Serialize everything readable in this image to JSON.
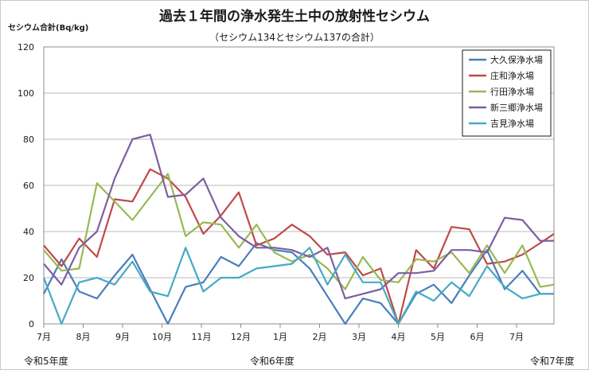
{
  "chart_data": {
    "type": "line",
    "title": "過去１年間の浄水発生土中の放射性セシウム",
    "subtitle": "（セシウム134とセシウム137の合計）",
    "ylabel": "セシウム合計(Bq/kg)",
    "ylim": [
      0,
      120
    ],
    "yticks": [
      0,
      20,
      40,
      60,
      80,
      100,
      120
    ],
    "grid": true,
    "legend": "top-right",
    "x_period_labels": [
      "令和5年度",
      "令和6年度",
      "令和7年度"
    ],
    "x_ticks": [
      {
        "label": "7月",
        "x": 0
      },
      {
        "label": "8月",
        "x": 2
      },
      {
        "label": "9月",
        "x": 4
      },
      {
        "label": "10月",
        "x": 6
      },
      {
        "label": "11月",
        "x": 8
      },
      {
        "label": "12月",
        "x": 10
      },
      {
        "label": "1月",
        "x": 12
      },
      {
        "label": "2月",
        "x": 14
      },
      {
        "label": "3月",
        "x": 16
      },
      {
        "label": "4月",
        "x": 18
      },
      {
        "label": "5月",
        "x": 20
      },
      {
        "label": "6月",
        "x": 22
      },
      {
        "label": "7月",
        "x": 24
      }
    ],
    "x_range": [
      0,
      25.9
    ],
    "series": [
      {
        "name": "大久保浄水場",
        "color": "#4a7ebb",
        "x": [
          0,
          0.9,
          1.8,
          2.7,
          3.6,
          4.5,
          5.4,
          6.3,
          7.2,
          8.1,
          9,
          9.9,
          10.8,
          11.7,
          12.6,
          13.5,
          14.4,
          15.3,
          16.2,
          17.1,
          18,
          18.9,
          19.8,
          20.7,
          21.6,
          22.5,
          23.4,
          24.3,
          25.2,
          25.9
        ],
        "y": [
          13,
          28,
          14,
          11,
          21,
          30,
          15,
          0,
          16,
          18,
          29,
          25,
          35,
          32,
          31,
          24,
          12,
          0,
          11,
          9,
          0,
          13,
          17,
          9,
          21,
          32,
          15,
          23,
          13,
          13
        ]
      },
      {
        "name": "庄和浄水場",
        "color": "#be4b48",
        "x": [
          0,
          0.9,
          1.8,
          2.7,
          3.6,
          4.5,
          5.4,
          6.3,
          7.2,
          8.1,
          9,
          9.9,
          10.8,
          11.7,
          12.6,
          13.5,
          14.4,
          15.3,
          16.2,
          17.1,
          18,
          18.9,
          19.8,
          20.7,
          21.6,
          22.5,
          23.4,
          24.3,
          25.2,
          25.9
        ],
        "y": [
          34,
          25,
          37,
          29,
          54,
          53,
          67,
          63,
          55,
          39,
          47,
          57,
          34,
          37,
          43,
          38,
          30,
          31,
          21,
          24,
          0,
          32,
          24,
          42,
          41,
          26,
          27,
          30,
          35,
          39
        ]
      },
      {
        "name": "行田浄水場",
        "color": "#98b954",
        "x": [
          0,
          0.9,
          1.8,
          2.7,
          3.6,
          4.5,
          5.4,
          6.3,
          7.2,
          8.1,
          9,
          9.9,
          10.8,
          11.7,
          12.6,
          13.5,
          14.4,
          15.3,
          16.2,
          17.1,
          18,
          18.9,
          19.8,
          20.7,
          21.6,
          22.5,
          23.4,
          24.3,
          25.2,
          25.9
        ],
        "y": [
          32,
          23,
          24,
          61,
          53,
          45,
          55,
          65,
          38,
          44,
          43,
          33,
          43,
          31,
          27,
          30,
          24,
          15,
          29,
          19,
          18,
          28,
          27,
          31,
          22,
          34,
          22,
          34,
          16,
          17
        ]
      },
      {
        "name": "新三郷浄水場",
        "color": "#7d5fa0",
        "x": [
          0,
          0.9,
          1.8,
          2.7,
          3.6,
          4.5,
          5.4,
          6.3,
          7.2,
          8.1,
          9,
          9.9,
          10.8,
          11.7,
          12.6,
          13.5,
          14.4,
          15.3,
          16.2,
          17.1,
          18,
          18.9,
          19.8,
          20.7,
          21.6,
          22.5,
          23.4,
          24.3,
          25.2,
          25.9
        ],
        "y": [
          26,
          17,
          33,
          40,
          63,
          80,
          82,
          55,
          56,
          63,
          46,
          38,
          33,
          33,
          32,
          29,
          33,
          11,
          13,
          15,
          22,
          22,
          23,
          32,
          32,
          31,
          46,
          45,
          36,
          36
        ]
      },
      {
        "name": "吉見浄水場",
        "color": "#46aac5",
        "x": [
          0,
          0.9,
          1.8,
          2.7,
          3.6,
          4.5,
          5.4,
          6.3,
          7.2,
          8.1,
          9,
          9.9,
          10.8,
          11.7,
          12.6,
          13.5,
          14.4,
          15.3,
          16.2,
          17.1,
          18,
          18.9,
          19.8,
          20.7,
          21.6,
          22.5,
          23.4,
          24.3,
          25.2,
          25.9
        ],
        "y": [
          20,
          0,
          18,
          20,
          17,
          27,
          14,
          12,
          33,
          14,
          20,
          20,
          24,
          25,
          26,
          33,
          17,
          30,
          18,
          18,
          0,
          14,
          10,
          18,
          12,
          25,
          16,
          11,
          13,
          13
        ]
      }
    ]
  }
}
